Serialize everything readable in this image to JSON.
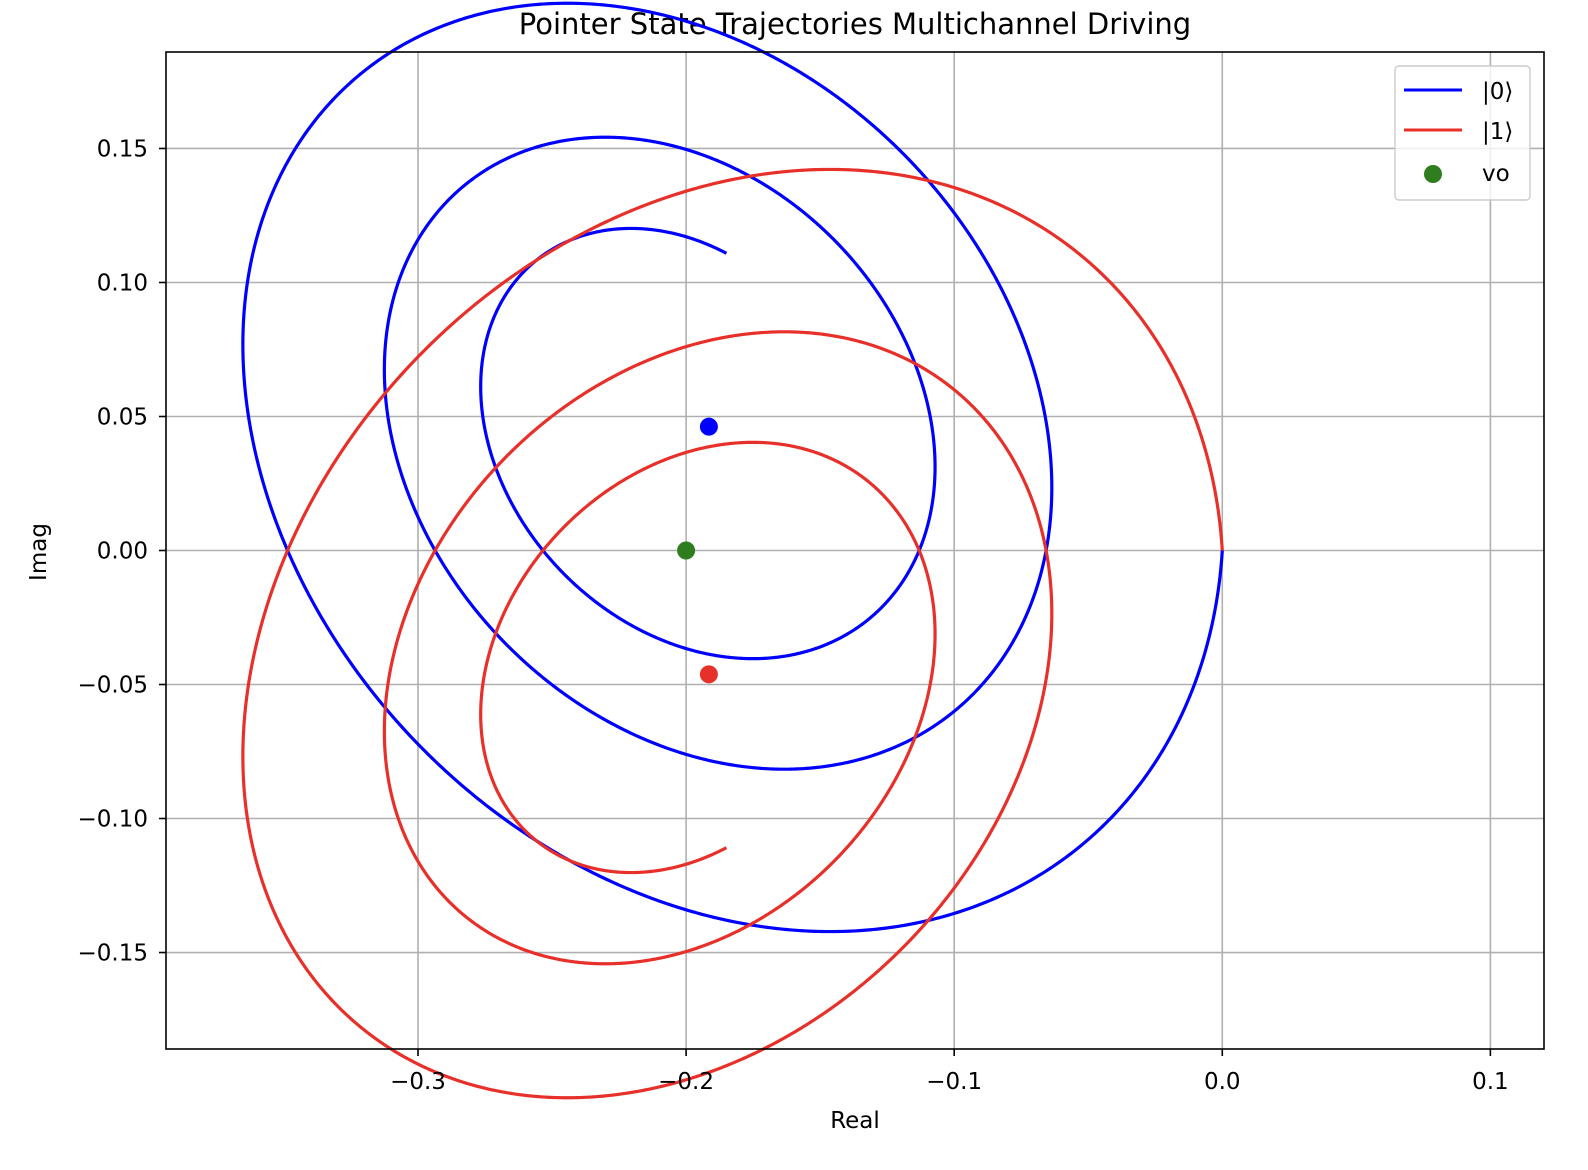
{
  "chart_data": {
    "type": "line",
    "title": "Pointer State Trajectories Multichannel Driving",
    "xlabel": "Real",
    "ylabel": "Imag",
    "xlim": [
      -0.394,
      0.12
    ],
    "ylim": [
      -0.186,
      0.186
    ],
    "xticks": [
      -0.3,
      -0.2,
      -0.1,
      0.0,
      0.1
    ],
    "xtick_labels": [
      "−0.3",
      "−0.2",
      "−0.1",
      "0.0",
      "0.1"
    ],
    "yticks": [
      -0.15,
      -0.1,
      -0.05,
      0.0,
      0.05,
      0.1,
      0.15
    ],
    "ytick_labels": [
      "−0.15",
      "−0.10",
      "−0.05",
      "0.00",
      "0.05",
      "0.10",
      "0.15"
    ],
    "grid": true,
    "legend_position": "top-right",
    "spiral": {
      "center": [
        -0.2,
        0.0
      ],
      "start": [
        0.0,
        0.0
      ],
      "chi": 0.0476,
      "kappa_over_omega": 0.0612,
      "turns_param_max": 17.5
    },
    "series": [
      {
        "name": "|0⟩",
        "color": "#0000ff",
        "kind": "line",
        "imag_sign": 1,
        "end_point": [
          -0.1915,
          0.0462
        ]
      },
      {
        "name": "|1⟩",
        "color": "#e8302a",
        "kind": "line",
        "imag_sign": -1,
        "end_point": [
          -0.1915,
          -0.0462
        ]
      },
      {
        "name": "vo",
        "color": "#2e7d1e",
        "kind": "scatter",
        "points": [
          [
            -0.2,
            0.0
          ]
        ]
      }
    ]
  }
}
